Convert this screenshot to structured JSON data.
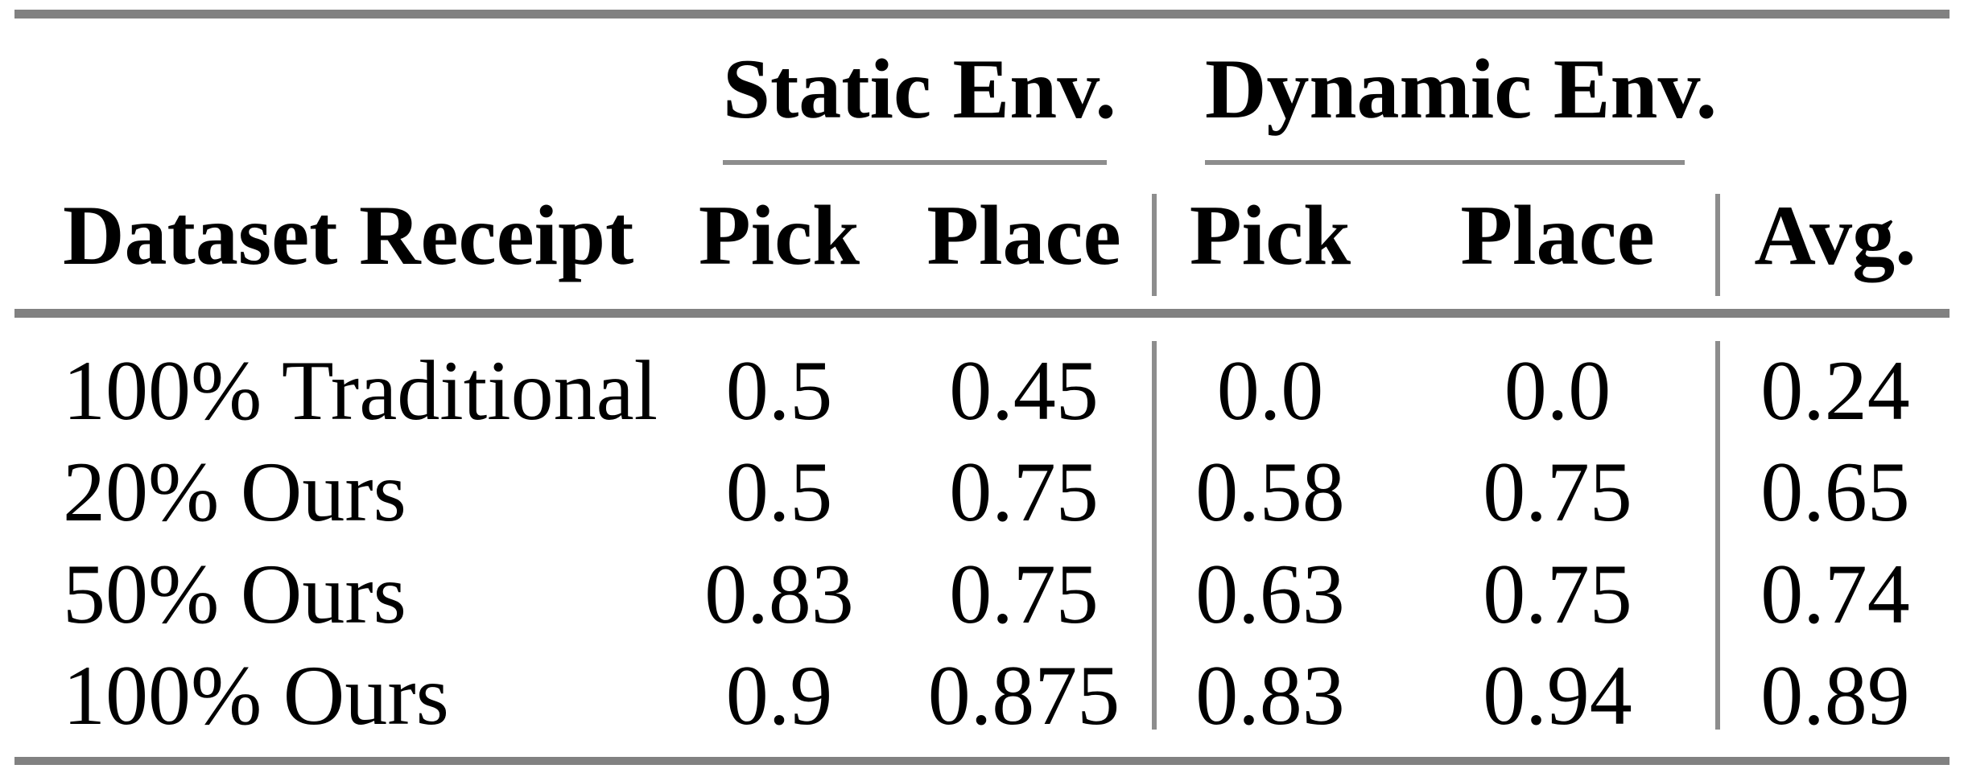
{
  "table": {
    "groups": [
      "Static Env.",
      "Dynamic Env."
    ],
    "headers": [
      "Dataset Receipt",
      "Pick",
      "Place",
      "Pick",
      "Place",
      "Avg."
    ],
    "rows": [
      {
        "label": "100% Traditional",
        "values": [
          "0.5",
          "0.45",
          "0.0",
          "0.0",
          "0.24"
        ]
      },
      {
        "label": "20% Ours",
        "values": [
          "0.5",
          "0.75",
          "0.58",
          "0.75",
          "0.65"
        ]
      },
      {
        "label": "50% Ours",
        "values": [
          "0.83",
          "0.75",
          "0.63",
          "0.75",
          "0.74"
        ]
      },
      {
        "label": "100% Ours",
        "values": [
          "0.9",
          "0.875",
          "0.83",
          "0.94",
          "0.89"
        ]
      }
    ]
  },
  "chart_data": {
    "type": "table",
    "title": "",
    "column_groups": [
      {
        "label": "Static Env.",
        "columns": [
          "Pick",
          "Place"
        ]
      },
      {
        "label": "Dynamic Env.",
        "columns": [
          "Pick",
          "Place"
        ]
      }
    ],
    "columns": [
      "Dataset Receipt",
      "Static Env. Pick",
      "Static Env. Place",
      "Dynamic Env. Pick",
      "Dynamic Env. Place",
      "Avg."
    ],
    "rows": [
      [
        "100% Traditional",
        0.5,
        0.45,
        0.0,
        0.0,
        0.24
      ],
      [
        "20% Ours",
        0.5,
        0.75,
        0.58,
        0.75,
        0.65
      ],
      [
        "50% Ours",
        0.83,
        0.75,
        0.63,
        0.75,
        0.74
      ],
      [
        "100% Ours",
        0.9,
        0.875,
        0.83,
        0.94,
        0.89
      ]
    ]
  },
  "colors": {
    "rule_thick": "#818181",
    "rule_thin": "#8d8d8d",
    "text": "#000000",
    "background": "#ffffff"
  }
}
